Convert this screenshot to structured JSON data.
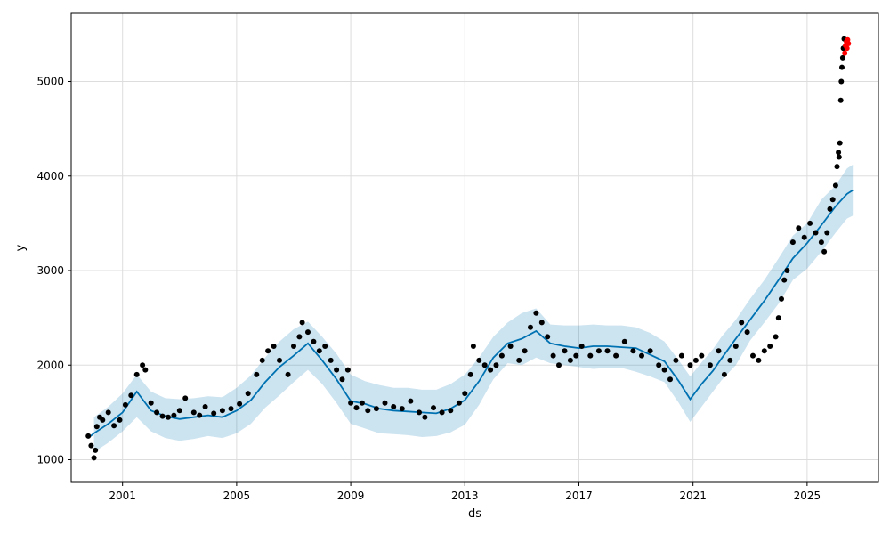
{
  "chart_data": {
    "type": "scatter",
    "xlabel": "ds",
    "ylabel": "y",
    "xlim": [
      1999.2,
      2027.5
    ],
    "ylim": [
      760,
      5720
    ],
    "grid": true,
    "x_ticks": [
      {
        "value": 2001,
        "label": "2001"
      },
      {
        "value": 2005,
        "label": "2005"
      },
      {
        "value": 2009,
        "label": "2009"
      },
      {
        "value": 2013,
        "label": "2013"
      },
      {
        "value": 2017,
        "label": "2017"
      },
      {
        "value": 2021,
        "label": "2021"
      },
      {
        "value": 2025,
        "label": "2025"
      }
    ],
    "y_ticks": [
      {
        "value": 1000,
        "label": "1000"
      },
      {
        "value": 2000,
        "label": "2000"
      },
      {
        "value": 3000,
        "label": "3000"
      },
      {
        "value": 4000,
        "label": "4000"
      },
      {
        "value": 5000,
        "label": "5000"
      }
    ],
    "colors": {
      "observed": "#000000",
      "forecast_line": "#0072B2",
      "interval_band": "#0072B2",
      "recent": "#ff0000",
      "grid": "#dddddd"
    },
    "series": [
      {
        "kind": "band",
        "x": [
          2000.0,
          2000.5,
          2001.0,
          2001.5,
          2002.0,
          2002.5,
          2003.0,
          2003.5,
          2004.0,
          2004.5,
          2005.0,
          2005.5,
          2006.0,
          2006.5,
          2007.0,
          2007.5,
          2008.0,
          2008.5,
          2009.0,
          2009.5,
          2010.0,
          2010.5,
          2011.0,
          2011.5,
          2012.0,
          2012.5,
          2013.0,
          2013.5,
          2014.0,
          2014.5,
          2015.0,
          2015.5,
          2016.0,
          2016.5,
          2017.0,
          2017.5,
          2018.0,
          2018.5,
          2019.0,
          2019.5,
          2020.0,
          2020.5,
          2020.9,
          2021.3,
          2021.7,
          2022.0,
          2022.5,
          2023.0,
          2023.5,
          2024.0,
          2024.5,
          2025.0,
          2025.5,
          2026.0,
          2026.4,
          2026.6
        ],
        "lower": [
          1080,
          1180,
          1300,
          1450,
          1300,
          1230,
          1200,
          1220,
          1250,
          1230,
          1280,
          1380,
          1550,
          1680,
          1820,
          1950,
          1800,
          1600,
          1380,
          1330,
          1280,
          1270,
          1260,
          1240,
          1250,
          1290,
          1370,
          1580,
          1850,
          2020,
          2000,
          2080,
          2020,
          2000,
          1980,
          1960,
          1970,
          1970,
          1930,
          1880,
          1820,
          1600,
          1400,
          1560,
          1720,
          1840,
          2000,
          2260,
          2450,
          2650,
          2900,
          3020,
          3200,
          3400,
          3550,
          3580
        ],
        "upper": [
          1450,
          1560,
          1700,
          1900,
          1720,
          1650,
          1640,
          1650,
          1670,
          1660,
          1760,
          1890,
          2080,
          2250,
          2380,
          2460,
          2300,
          2120,
          1900,
          1830,
          1790,
          1760,
          1760,
          1740,
          1740,
          1800,
          1900,
          2080,
          2300,
          2450,
          2550,
          2600,
          2430,
          2420,
          2420,
          2430,
          2420,
          2420,
          2400,
          2340,
          2250,
          2050,
          1880,
          2030,
          2170,
          2300,
          2480,
          2700,
          2900,
          3130,
          3370,
          3500,
          3750,
          3900,
          4080,
          4120
        ]
      },
      {
        "kind": "line",
        "name": "yhat",
        "x": [
          1999.8,
          2000.0,
          2000.5,
          2001.0,
          2001.5,
          2002.0,
          2002.5,
          2003.0,
          2003.5,
          2004.0,
          2004.5,
          2005.0,
          2005.5,
          2006.0,
          2006.5,
          2007.0,
          2007.5,
          2008.0,
          2008.5,
          2009.0,
          2009.5,
          2010.0,
          2010.5,
          2011.0,
          2011.5,
          2012.0,
          2012.5,
          2013.0,
          2013.5,
          2014.0,
          2014.5,
          2015.0,
          2015.5,
          2016.0,
          2016.5,
          2017.0,
          2017.5,
          2018.0,
          2018.5,
          2019.0,
          2019.5,
          2020.0,
          2020.5,
          2020.9,
          2021.3,
          2021.7,
          2022.0,
          2022.5,
          2023.0,
          2023.5,
          2024.0,
          2024.5,
          2025.0,
          2025.5,
          2026.0,
          2026.4,
          2026.6
        ],
        "y": [
          1230,
          1280,
          1380,
          1500,
          1720,
          1520,
          1460,
          1430,
          1450,
          1470,
          1450,
          1520,
          1630,
          1820,
          1980,
          2100,
          2230,
          2050,
          1850,
          1620,
          1590,
          1540,
          1520,
          1510,
          1500,
          1490,
          1540,
          1630,
          1830,
          2080,
          2230,
          2280,
          2360,
          2230,
          2200,
          2180,
          2200,
          2200,
          2190,
          2180,
          2110,
          2040,
          1830,
          1640,
          1800,
          1940,
          2070,
          2280,
          2480,
          2680,
          2900,
          3130,
          3290,
          3480,
          3680,
          3810,
          3850
        ]
      },
      {
        "kind": "points",
        "name": "observed",
        "x": [
          1999.8,
          1999.9,
          2000.0,
          2000.05,
          2000.1,
          2000.2,
          2000.3,
          2000.5,
          2000.7,
          2000.9,
          2001.1,
          2001.3,
          2001.5,
          2001.7,
          2001.8,
          2002.0,
          2002.2,
          2002.4,
          2002.6,
          2002.8,
          2003.0,
          2003.2,
          2003.5,
          2003.7,
          2003.9,
          2004.2,
          2004.5,
          2004.8,
          2005.1,
          2005.4,
          2005.7,
          2005.9,
          2006.1,
          2006.3,
          2006.5,
          2006.8,
          2007.0,
          2007.2,
          2007.3,
          2007.5,
          2007.7,
          2007.9,
          2008.1,
          2008.3,
          2008.5,
          2008.7,
          2008.9,
          2009.0,
          2009.2,
          2009.4,
          2009.6,
          2009.9,
          2010.2,
          2010.5,
          2010.8,
          2011.1,
          2011.4,
          2011.6,
          2011.9,
          2012.2,
          2012.5,
          2012.8,
          2013.0,
          2013.2,
          2013.3,
          2013.5,
          2013.7,
          2013.9,
          2014.1,
          2014.3,
          2014.6,
          2014.9,
          2015.1,
          2015.3,
          2015.5,
          2015.7,
          2015.9,
          2016.1,
          2016.3,
          2016.5,
          2016.7,
          2016.9,
          2017.1,
          2017.4,
          2017.7,
          2018.0,
          2018.3,
          2018.6,
          2018.9,
          2019.2,
          2019.5,
          2019.8,
          2020.0,
          2020.2,
          2020.4,
          2020.6,
          2020.9,
          2021.1,
          2021.3,
          2021.6,
          2021.9,
          2022.1,
          2022.3,
          2022.5,
          2022.7,
          2022.9,
          2023.1,
          2023.3,
          2023.5,
          2023.7,
          2023.9,
          2024.0,
          2024.1,
          2024.2,
          2024.3,
          2024.5,
          2024.7,
          2024.9,
          2025.1,
          2025.3,
          2025.5,
          2025.6,
          2025.7,
          2025.8,
          2025.9,
          2026.0,
          2026.05,
          2026.1,
          2026.12,
          2026.15,
          2026.18,
          2026.2,
          2026.22,
          2026.25,
          2026.27,
          2026.3
        ],
        "y": [
          1250,
          1150,
          1020,
          1100,
          1350,
          1450,
          1420,
          1500,
          1360,
          1420,
          1580,
          1680,
          1900,
          2000,
          1950,
          1600,
          1500,
          1460,
          1450,
          1470,
          1520,
          1650,
          1500,
          1470,
          1560,
          1490,
          1520,
          1540,
          1590,
          1700,
          1900,
          2050,
          2150,
          2200,
          2050,
          1900,
          2200,
          2300,
          2450,
          2350,
          2250,
          2150,
          2200,
          2050,
          1950,
          1850,
          1950,
          1600,
          1550,
          1600,
          1520,
          1540,
          1600,
          1560,
          1540,
          1620,
          1500,
          1450,
          1550,
          1500,
          1520,
          1600,
          1700,
          1900,
          2200,
          2050,
          2000,
          1950,
          2000,
          2100,
          2200,
          2050,
          2150,
          2400,
          2550,
          2450,
          2300,
          2100,
          2000,
          2150,
          2050,
          2100,
          2200,
          2100,
          2150,
          2150,
          2100,
          2250,
          2150,
          2100,
          2150,
          2000,
          1950,
          1850,
          2050,
          2100,
          2000,
          2050,
          2100,
          2000,
          2150,
          1900,
          2050,
          2200,
          2450,
          2350,
          2100,
          2050,
          2150,
          2200,
          2300,
          2500,
          2700,
          2900,
          3000,
          3300,
          3450,
          3350,
          3500,
          3400,
          3300,
          3200,
          3400,
          3650,
          3750,
          3900,
          4100,
          4250,
          4200,
          4350,
          4800,
          5000,
          5150,
          5250,
          5350,
          5450
        ]
      },
      {
        "kind": "points",
        "name": "recent",
        "x": [
          2026.32,
          2026.35,
          2026.38,
          2026.4,
          2026.42,
          2026.45
        ],
        "y": [
          5300,
          5380,
          5420,
          5350,
          5440,
          5400
        ]
      }
    ]
  }
}
